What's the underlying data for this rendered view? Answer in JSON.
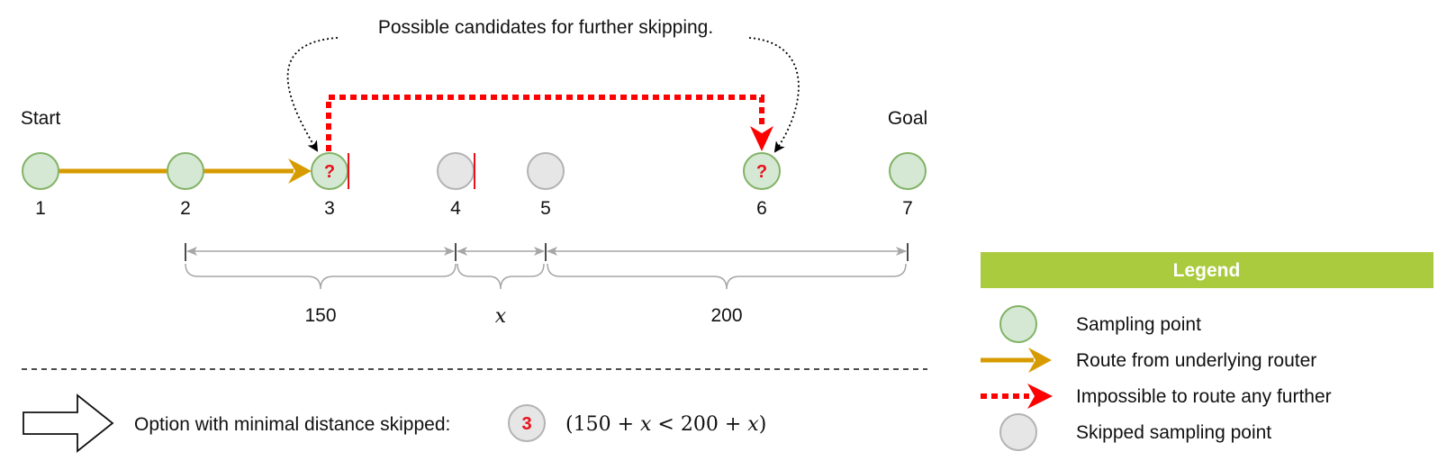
{
  "annotation": "Possible candidates for further skipping.",
  "start_label": "Start",
  "goal_label": "Goal",
  "points": [
    {
      "label": "1",
      "type": "sampling",
      "mark": ""
    },
    {
      "label": "2",
      "type": "sampling",
      "mark": ""
    },
    {
      "label": "3",
      "type": "sampling",
      "mark": "?"
    },
    {
      "label": "4",
      "type": "skipped",
      "mark": ""
    },
    {
      "label": "5",
      "type": "skipped",
      "mark": ""
    },
    {
      "label": "6",
      "type": "sampling",
      "mark": "?"
    },
    {
      "label": "7",
      "type": "sampling",
      "mark": ""
    }
  ],
  "distances": [
    {
      "label": "150",
      "math": false
    },
    {
      "label": "x",
      "math": true
    },
    {
      "label": "200",
      "math": false
    }
  ],
  "option": {
    "text": "Option with minimal distance skipped:",
    "badge": "3",
    "formula_open": "(150 + ",
    "formula_x1": "x",
    "formula_mid": " < 200 + ",
    "formula_x2": "x",
    "formula_close": ")"
  },
  "legend": {
    "title": "Legend",
    "items": [
      {
        "icon": "sampling-point-icon",
        "label": "Sampling point"
      },
      {
        "icon": "router-route-arrow-icon",
        "label": "Route from underlying router"
      },
      {
        "icon": "impossible-route-arrow-icon",
        "label": "Impossible to route any further"
      },
      {
        "icon": "skipped-point-icon",
        "label": "Skipped sampling point"
      }
    ]
  },
  "colors": {
    "sampling_fill": "#d5e8d4",
    "sampling_stroke": "#82b366",
    "skipped_fill": "#e6e6e6",
    "skipped_stroke": "#b3b3b3",
    "route": "#d79b00",
    "impossible": "#ff0000",
    "legend_header": "#a9cb3d",
    "dimension": "#a6a6a6"
  }
}
